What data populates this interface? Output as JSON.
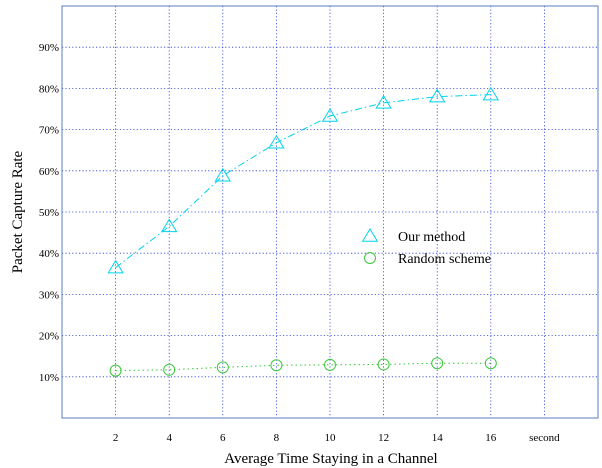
{
  "chart_data": {
    "type": "line",
    "xlabel": "Average Time Staying in a Channel",
    "ylabel": "Packet Capture Rate",
    "x_unit_label": "second",
    "categories": [
      2,
      4,
      6,
      8,
      10,
      12,
      14,
      16
    ],
    "x_tick_labels": [
      "2",
      "4",
      "6",
      "8",
      "10",
      "12",
      "14",
      "16"
    ],
    "y_tick_labels": [
      "10%",
      "20%",
      "30%",
      "40%",
      "50%",
      "60%",
      "70%",
      "80%",
      "90%"
    ],
    "xlim": [
      0,
      20
    ],
    "ylim": [
      0,
      100
    ],
    "grid": true,
    "legend_position": "center-right",
    "series": [
      {
        "name": "Our method",
        "marker": "triangle",
        "color": "#00d4e8",
        "line_style": "dash-dot",
        "values": [
          36.5,
          46.5,
          58.8,
          66.8,
          73.3,
          76.5,
          78.0,
          78.5
        ]
      },
      {
        "name": "Random scheme",
        "marker": "circle",
        "color": "#3cc83c",
        "line_style": "dotted",
        "values": [
          11.5,
          11.7,
          12.3,
          12.8,
          12.9,
          13.0,
          13.3,
          13.3
        ]
      }
    ]
  }
}
